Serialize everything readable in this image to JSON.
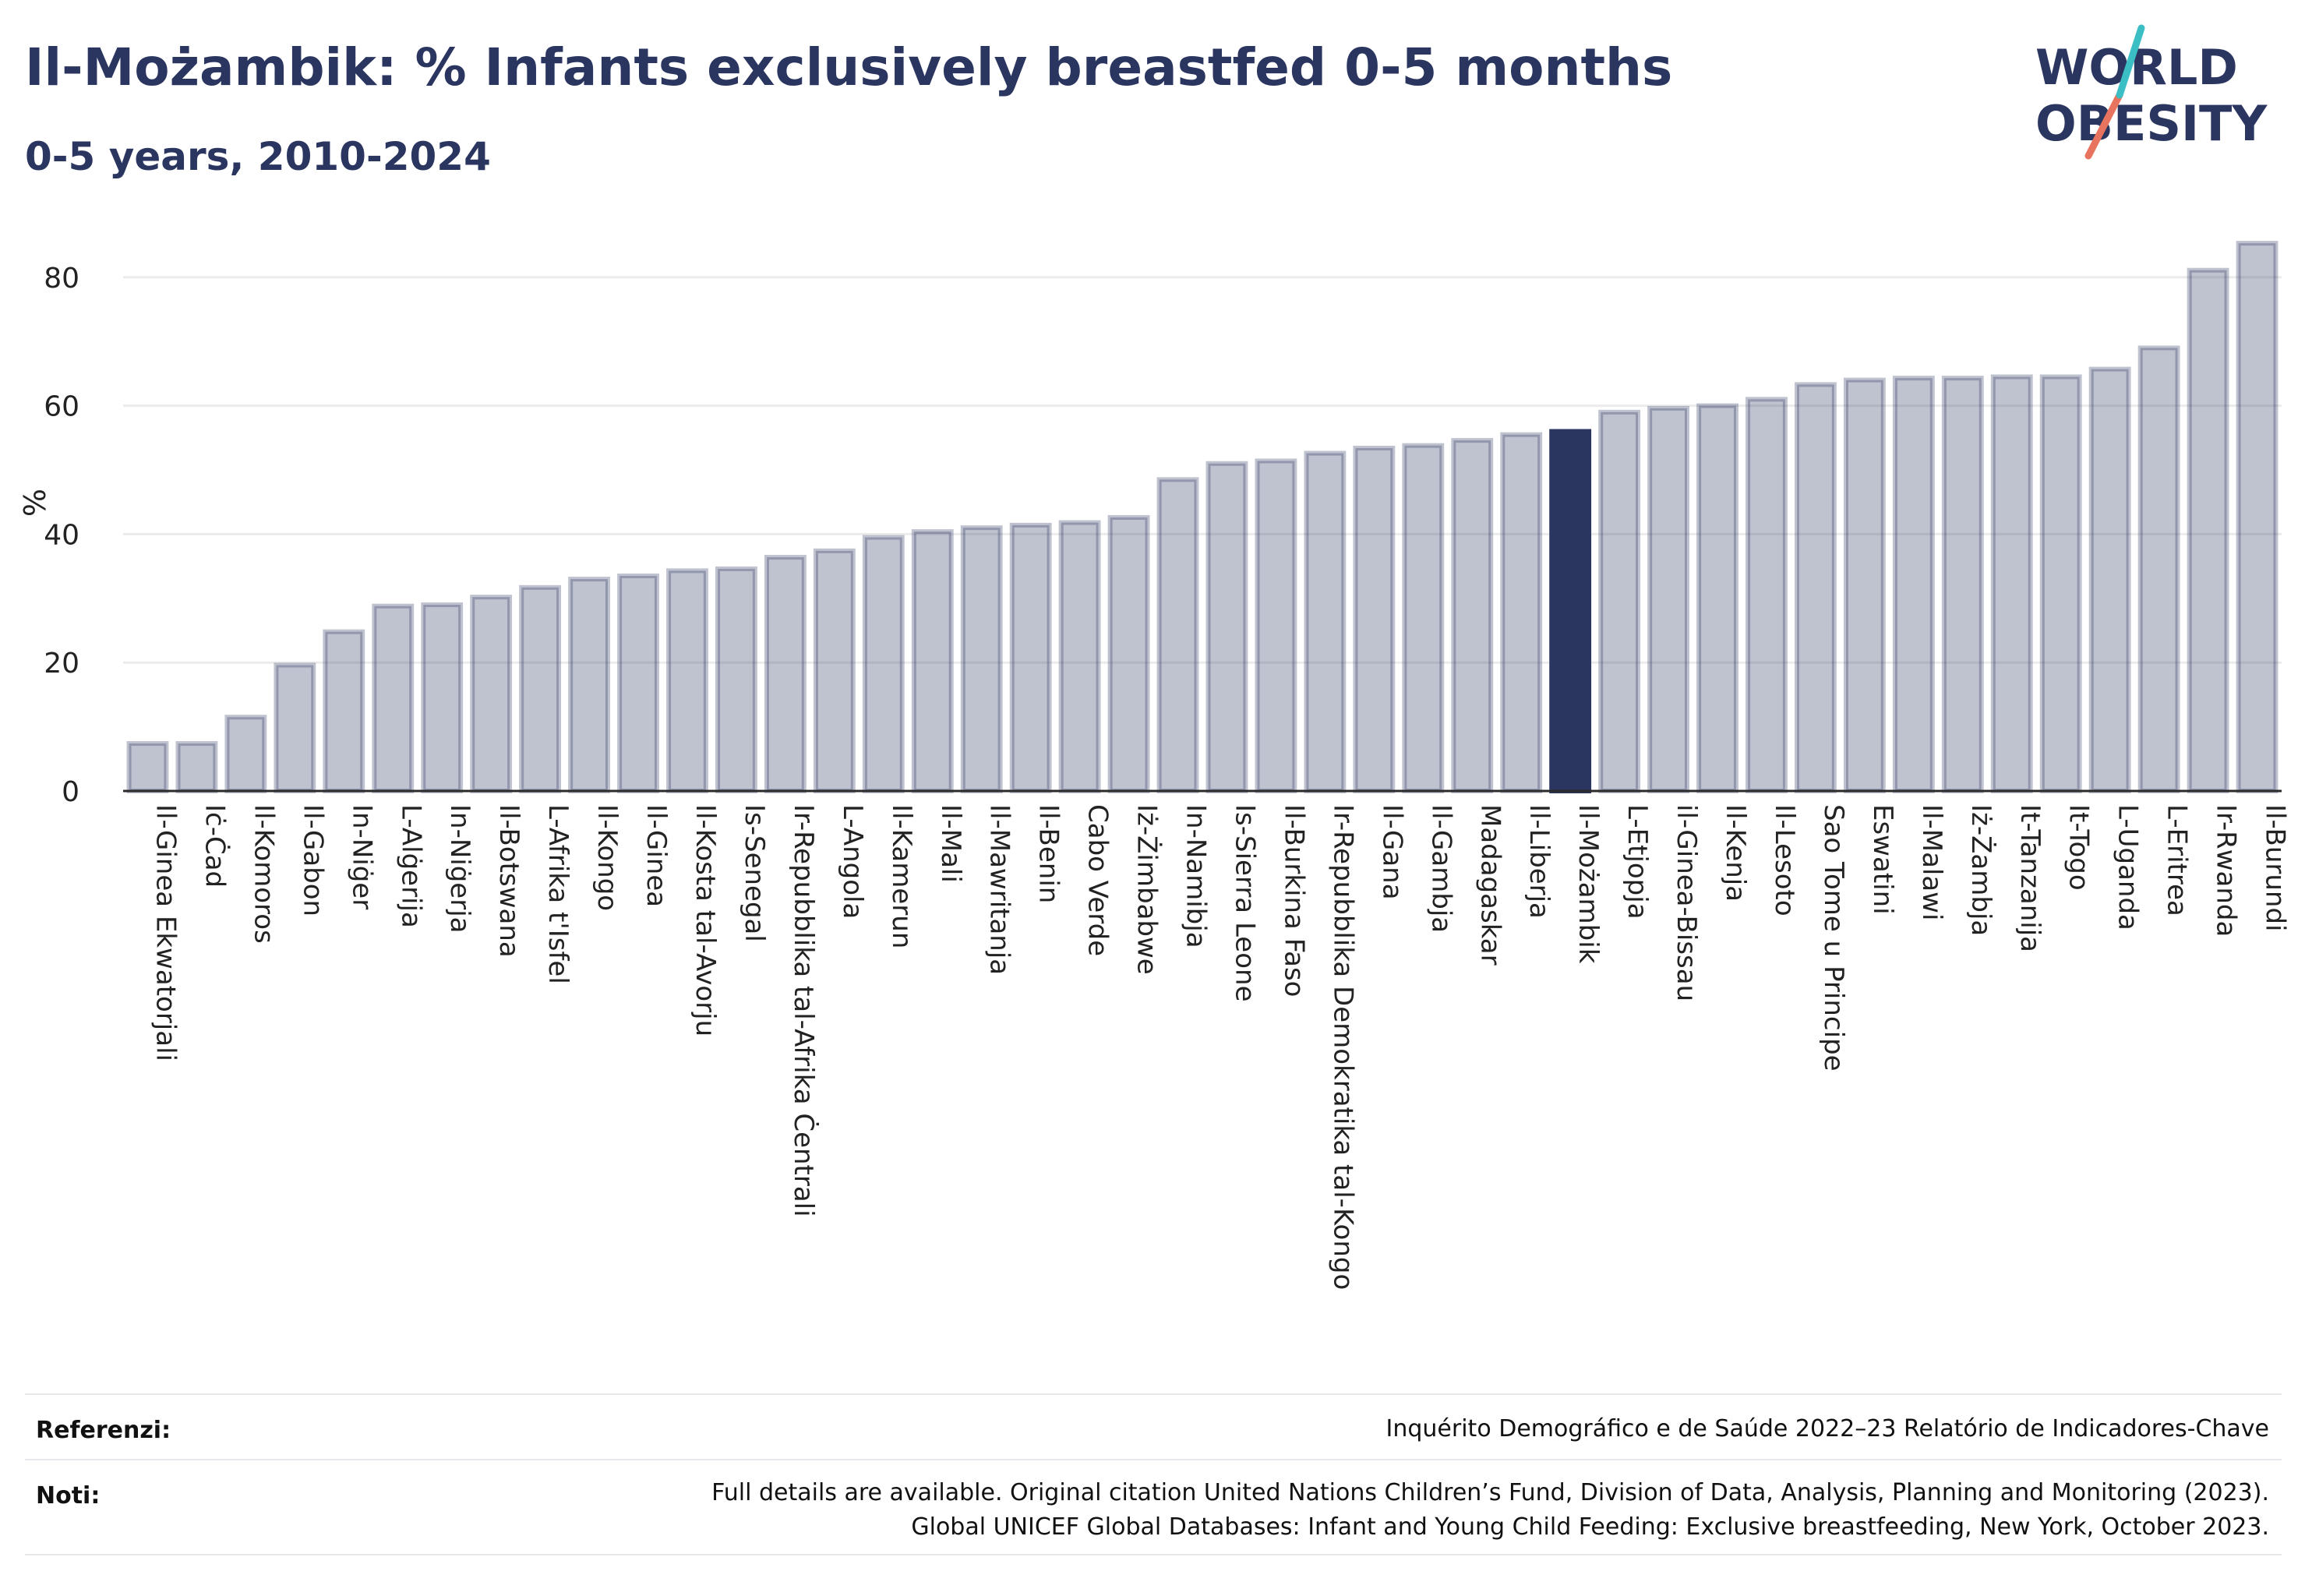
{
  "header": {
    "title": "Il-Możambik: % Infants exclusively breastfed 0-5 months",
    "subtitle": "0-5 years, 2010-2024"
  },
  "logo": {
    "line1": "WORLD",
    "line2": "OBESITY",
    "accent_teal": "#3cbfc4",
    "accent_coral": "#e8735e",
    "text_color": "#2b3660"
  },
  "colors": {
    "bar": "#2b3660",
    "bar_opacity": 0.3,
    "highlight": "#2b3660"
  },
  "chart_data": {
    "type": "bar",
    "ylabel": "%",
    "ylim": [
      0,
      88
    ],
    "yticks": [
      0,
      20,
      40,
      60,
      80
    ],
    "grid": true,
    "highlight": "Il-Możambik",
    "categories": [
      "Il-Ginea Ekwatorjali",
      "Iċ-Ċad",
      "Il-Komoros",
      "Il-Gabon",
      "In-Niġer",
      "L-Alġerija",
      "In-Niġerja",
      "Il-Botswana",
      "L-Afrika t'Isfel",
      "Il-Kongo",
      "Il-Ginea",
      "Il-Kosta tal-Avorju",
      "Is-Senegal",
      "Ir-Repubblika tal-Afrika Ċentrali",
      "L-Angola",
      "Il-Kamerun",
      "Il-Mali",
      "Il-Mawritanja",
      "Il-Benin",
      "Cabo Verde",
      "Iż-Żimbabwe",
      "In-Namibja",
      "Is-Sierra Leone",
      "Il-Burkina Faso",
      "Ir-Repubblika Demokratika tal-Kongo",
      "Il-Gana",
      "Il-Gambja",
      "Madagaskar",
      "Il-Liberja",
      "Il-Możambik",
      "L-Etjopja",
      "il-Ginea-Bissau",
      "Il-Kenja",
      "Il-Lesoto",
      "Sao Tome u Principe",
      "Eswatini",
      "Il-Malawi",
      "Iż-Żambja",
      "It-Tanzanija",
      "It-Togo",
      "L-Uganda",
      "L-Eritrea",
      "Ir-Rwanda",
      "Il-Burundi"
    ],
    "values": [
      7.4,
      7.4,
      11.5,
      19.6,
      24.8,
      28.8,
      29.0,
      30.2,
      31.7,
      33.0,
      33.5,
      34.3,
      34.6,
      36.4,
      37.4,
      39.5,
      40.4,
      41.0,
      41.4,
      41.8,
      42.6,
      48.5,
      51.0,
      51.4,
      52.6,
      53.4,
      53.8,
      54.6,
      55.5,
      56.0,
      59.0,
      59.6,
      60.0,
      61.0,
      63.3,
      64.0,
      64.3,
      64.3,
      64.5,
      64.5,
      65.7,
      69.0,
      81.1,
      85.3
    ]
  },
  "footer": {
    "references_label": "Referenzi:",
    "references_text": "Inquérito Demográfico e de Saúde 2022–23 Relatório de Indicadores-Chave",
    "notes_label": "Noti:",
    "notes_line1": "Full details are available. Original citation United Nations Children’s Fund, Division of Data, Analysis, Planning and Monitoring (2023).",
    "notes_line2": "Global UNICEF Global Databases: Infant and Young Child Feeding: Exclusive breastfeeding, New York, October 2023."
  }
}
